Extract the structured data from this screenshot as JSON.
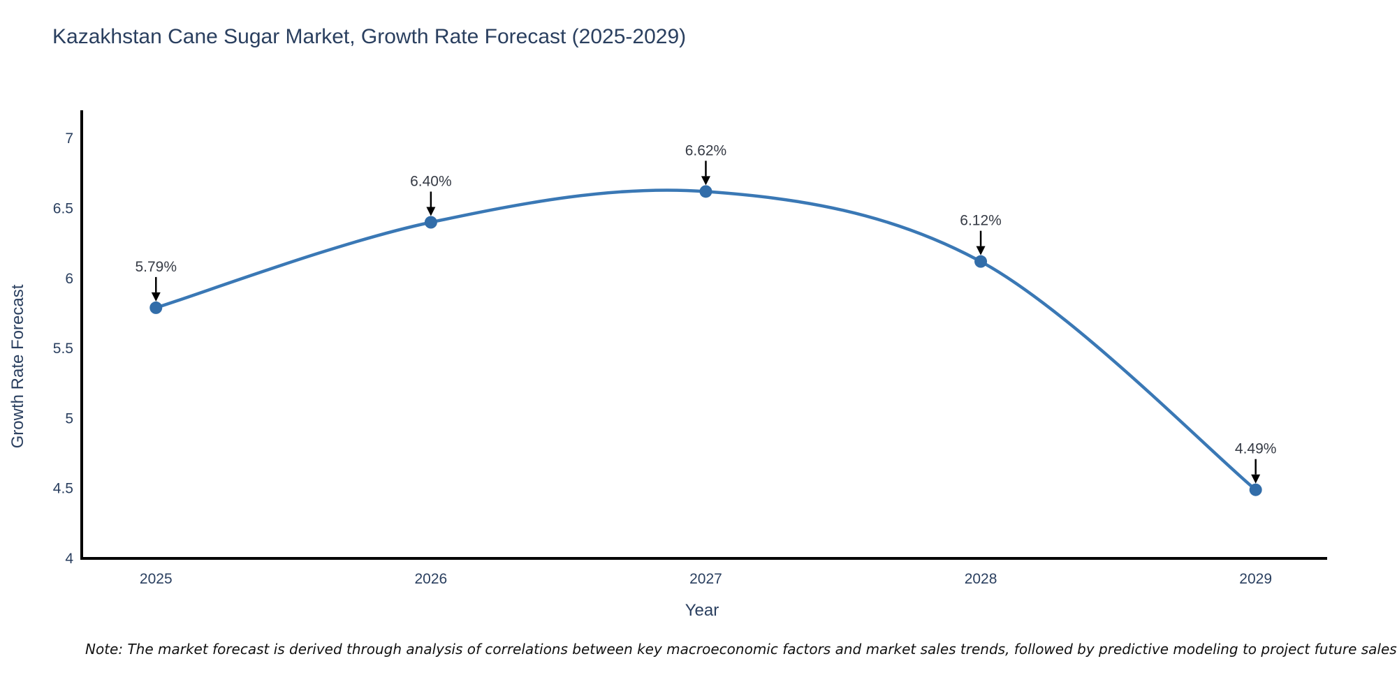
{
  "page": {
    "title": "Kazakhstan Cane Sugar Market, Growth Rate Forecast (2025-2029)",
    "note": "Note: The market forecast is derived through analysis of correlations between key macroeconomic factors and market sales trends, followed by predictive modeling to project future sales"
  },
  "chart_data": {
    "type": "line",
    "title": "Kazakhstan Cane Sugar Market, Growth Rate Forecast (2025-2029)",
    "x": [
      2025,
      2026,
      2027,
      2028,
      2029
    ],
    "series": [
      {
        "name": "Growth Rate Forecast",
        "values": [
          5.79,
          6.4,
          6.62,
          6.12,
          4.49
        ]
      }
    ],
    "point_labels": [
      "5.79%",
      "6.40%",
      "6.62%",
      "6.12%",
      "4.49%"
    ],
    "xlabel": "Year",
    "ylabel": "Growth Rate Forecast",
    "xlim": [
      2024.73,
      2029.26
    ],
    "ylim": [
      4,
      7.2
    ],
    "yticks": [
      4,
      4.5,
      5,
      5.5,
      6,
      6.5,
      7
    ],
    "xticks": [
      2025,
      2026,
      2027,
      2028,
      2029
    ],
    "grid": false,
    "legend_position": "none",
    "smooth": true,
    "annotation_style": "down-arrow",
    "colors": {
      "line": "#3a78b5",
      "marker": "#326da9",
      "axis": "#000000",
      "tick_text": "#2a3f5f",
      "title_text": "#2a3f5f",
      "annotation_text": "#363b45",
      "arrow": "#000000",
      "background": "#ffffff"
    }
  }
}
